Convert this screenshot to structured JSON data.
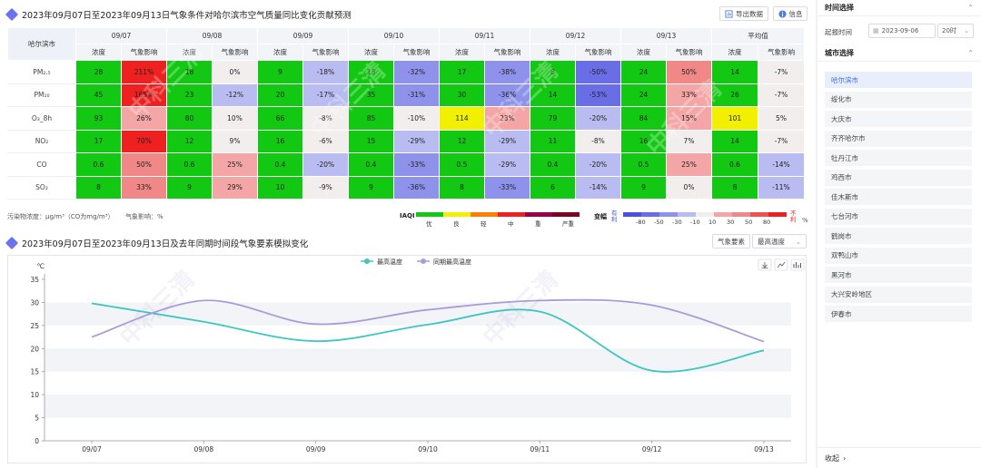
{
  "title1": "2023年09月07日至2023年09月13日气象条件对哈尔滨市空气质量同比变化贡献预测",
  "export_label": "导出数据",
  "info_label": "信息",
  "table": {
    "city": "哈尔滨市",
    "dates": [
      "09/07",
      "09/08",
      "09/09",
      "09/10",
      "09/11",
      "09/12",
      "09/13",
      "平均值"
    ],
    "sub_conc": "浓度",
    "sub_met": "气象影响",
    "rows": [
      {
        "label": "PM₂.₅",
        "cells": [
          "28",
          "211%",
          "18",
          "0%",
          "9",
          "-18%",
          "13",
          "-32%",
          "17",
          "-38%",
          "8",
          "-50%",
          "24",
          "50%",
          "14",
          "-7%"
        ],
        "colors": [
          "#12c812",
          "#ee2020",
          "#12c812",
          "#f3eeee",
          "#12c812",
          "#b9bcf0",
          "#12c812",
          "#8f92ea",
          "#12c812",
          "#8f92ea",
          "#12c812",
          "#6a6ee6",
          "#12c812",
          "#f08888",
          "#12c812",
          "#f3eeee"
        ]
      },
      {
        "label": "PM₁₀",
        "cells": [
          "45",
          "165%",
          "23",
          "-12%",
          "20",
          "-17%",
          "35",
          "-31%",
          "30",
          "-36%",
          "14",
          "-53%",
          "24",
          "33%",
          "26",
          "-7%"
        ],
        "colors": [
          "#12c812",
          "#ee2020",
          "#12c812",
          "#b9bcf0",
          "#12c812",
          "#b9bcf0",
          "#12c812",
          "#8f92ea",
          "#12c812",
          "#8f92ea",
          "#12c812",
          "#6a6ee6",
          "#12c812",
          "#f4a5a5",
          "#12c812",
          "#f3eeee"
        ]
      },
      {
        "label": "O₃_8h",
        "cells": [
          "93",
          "26%",
          "80",
          "10%",
          "66",
          "-8%",
          "85",
          "-10%",
          "114",
          "23%",
          "79",
          "-20%",
          "84",
          "15%",
          "101",
          "5%"
        ],
        "colors": [
          "#12c812",
          "#f4a5a5",
          "#12c812",
          "#f3eeee",
          "#12c812",
          "#f3eeee",
          "#12c812",
          "#f3eeee",
          "#f0f000",
          "#f4a5a5",
          "#12c812",
          "#b9bcf0",
          "#12c812",
          "#f4a5a5",
          "#f0f000",
          "#f3eeee"
        ]
      },
      {
        "label": "NO₂",
        "cells": [
          "17",
          "70%",
          "12",
          "9%",
          "16",
          "-6%",
          "15",
          "-29%",
          "12",
          "-29%",
          "11",
          "-8%",
          "16",
          "7%",
          "14",
          "-7%"
        ],
        "colors": [
          "#12c812",
          "#ee2020",
          "#12c812",
          "#f3eeee",
          "#12c812",
          "#f3eeee",
          "#12c812",
          "#b9bcf0",
          "#12c812",
          "#b9bcf0",
          "#12c812",
          "#f3eeee",
          "#12c812",
          "#f3eeee",
          "#12c812",
          "#f3eeee"
        ]
      },
      {
        "label": "CO",
        "cells": [
          "0.6",
          "50%",
          "0.6",
          "25%",
          "0.4",
          "-20%",
          "0.4",
          "-33%",
          "0.5",
          "-29%",
          "0.4",
          "-20%",
          "0.5",
          "25%",
          "0.6",
          "-14%"
        ],
        "colors": [
          "#12c812",
          "#f08888",
          "#12c812",
          "#f4a5a5",
          "#12c812",
          "#b9bcf0",
          "#12c812",
          "#8f92ea",
          "#12c812",
          "#b9bcf0",
          "#12c812",
          "#b9bcf0",
          "#12c812",
          "#f4a5a5",
          "#12c812",
          "#b9bcf0"
        ]
      },
      {
        "label": "SO₂",
        "cells": [
          "8",
          "33%",
          "9",
          "29%",
          "10",
          "-9%",
          "9",
          "-36%",
          "8",
          "-33%",
          "6",
          "-14%",
          "9",
          "0%",
          "8",
          "-11%"
        ],
        "colors": [
          "#12c812",
          "#f08888",
          "#12c812",
          "#f4a5a5",
          "#12c812",
          "#f3eeee",
          "#12c812",
          "#8f92ea",
          "#12c812",
          "#8f92ea",
          "#12c812",
          "#b9bcf0",
          "#12c812",
          "#f3eeee",
          "#12c812",
          "#b9bcf0"
        ]
      }
    ]
  },
  "legend": {
    "unit_note": "污染物浓度：μg/m³（CO为mg/m³）",
    "met_note": "气象影响：%",
    "iaqi_title": "IAQI",
    "iaqi_labels": [
      "优",
      "良",
      "轻",
      "中",
      "重",
      "严重"
    ],
    "iaqi_colors": [
      "#12c812",
      "#f0f000",
      "#ff7e00",
      "#ee2020",
      "#99004c",
      "#7e0023"
    ],
    "amp_title": "变幅",
    "good_label": "有利",
    "bad_label": "不利",
    "amp_ticks": [
      "-80",
      "-50",
      "-30",
      "-10",
      "10",
      "30",
      "50",
      "80"
    ],
    "amp_colors": [
      "#4a50e0",
      "#6a6ee6",
      "#8f92ea",
      "#b9bcf0",
      "#f3eeee",
      "#f4a5a5",
      "#f08888",
      "#ee5050",
      "#ee2020"
    ],
    "pct": "%"
  },
  "title2": "2023年09月07日至2023年09月13日及去年同期时间段气象要素模拟变化",
  "met_element_label": "气象要素",
  "met_element_value": "最高温度",
  "chart_data": {
    "type": "line",
    "title": "",
    "ylabel": "℃",
    "x": [
      "09/07",
      "09/08",
      "09/09",
      "09/10",
      "09/11",
      "09/12",
      "09/13"
    ],
    "ylim": [
      0,
      35
    ],
    "yticks": [
      0,
      5,
      10,
      15,
      20,
      25,
      30,
      35
    ],
    "series": [
      {
        "name": "最高温度",
        "color": "#3ec6c0",
        "values": [
          29.8,
          25.8,
          21.6,
          25.2,
          28.0,
          15.2,
          19.6
        ]
      },
      {
        "name": "同期最高温度",
        "color": "#a99bd8",
        "values": [
          22.5,
          30.4,
          25.3,
          28.4,
          30.4,
          29.4,
          21.5
        ]
      }
    ]
  },
  "sidebar": {
    "time_header": "时间选择",
    "report_time_label": "起报时间",
    "report_date": "2023-09-06",
    "report_hour": "20时",
    "city_header": "城市选择",
    "cities": [
      "哈尔滨市",
      "绥化市",
      "大庆市",
      "齐齐哈尔市",
      "牡丹江市",
      "鸡西市",
      "佳木斯市",
      "七台河市",
      "鹤岗市",
      "双鸭山市",
      "黑河市",
      "大兴安岭地区",
      "伊春市"
    ],
    "collapse_label": "收起"
  },
  "watermark": "中科三清"
}
